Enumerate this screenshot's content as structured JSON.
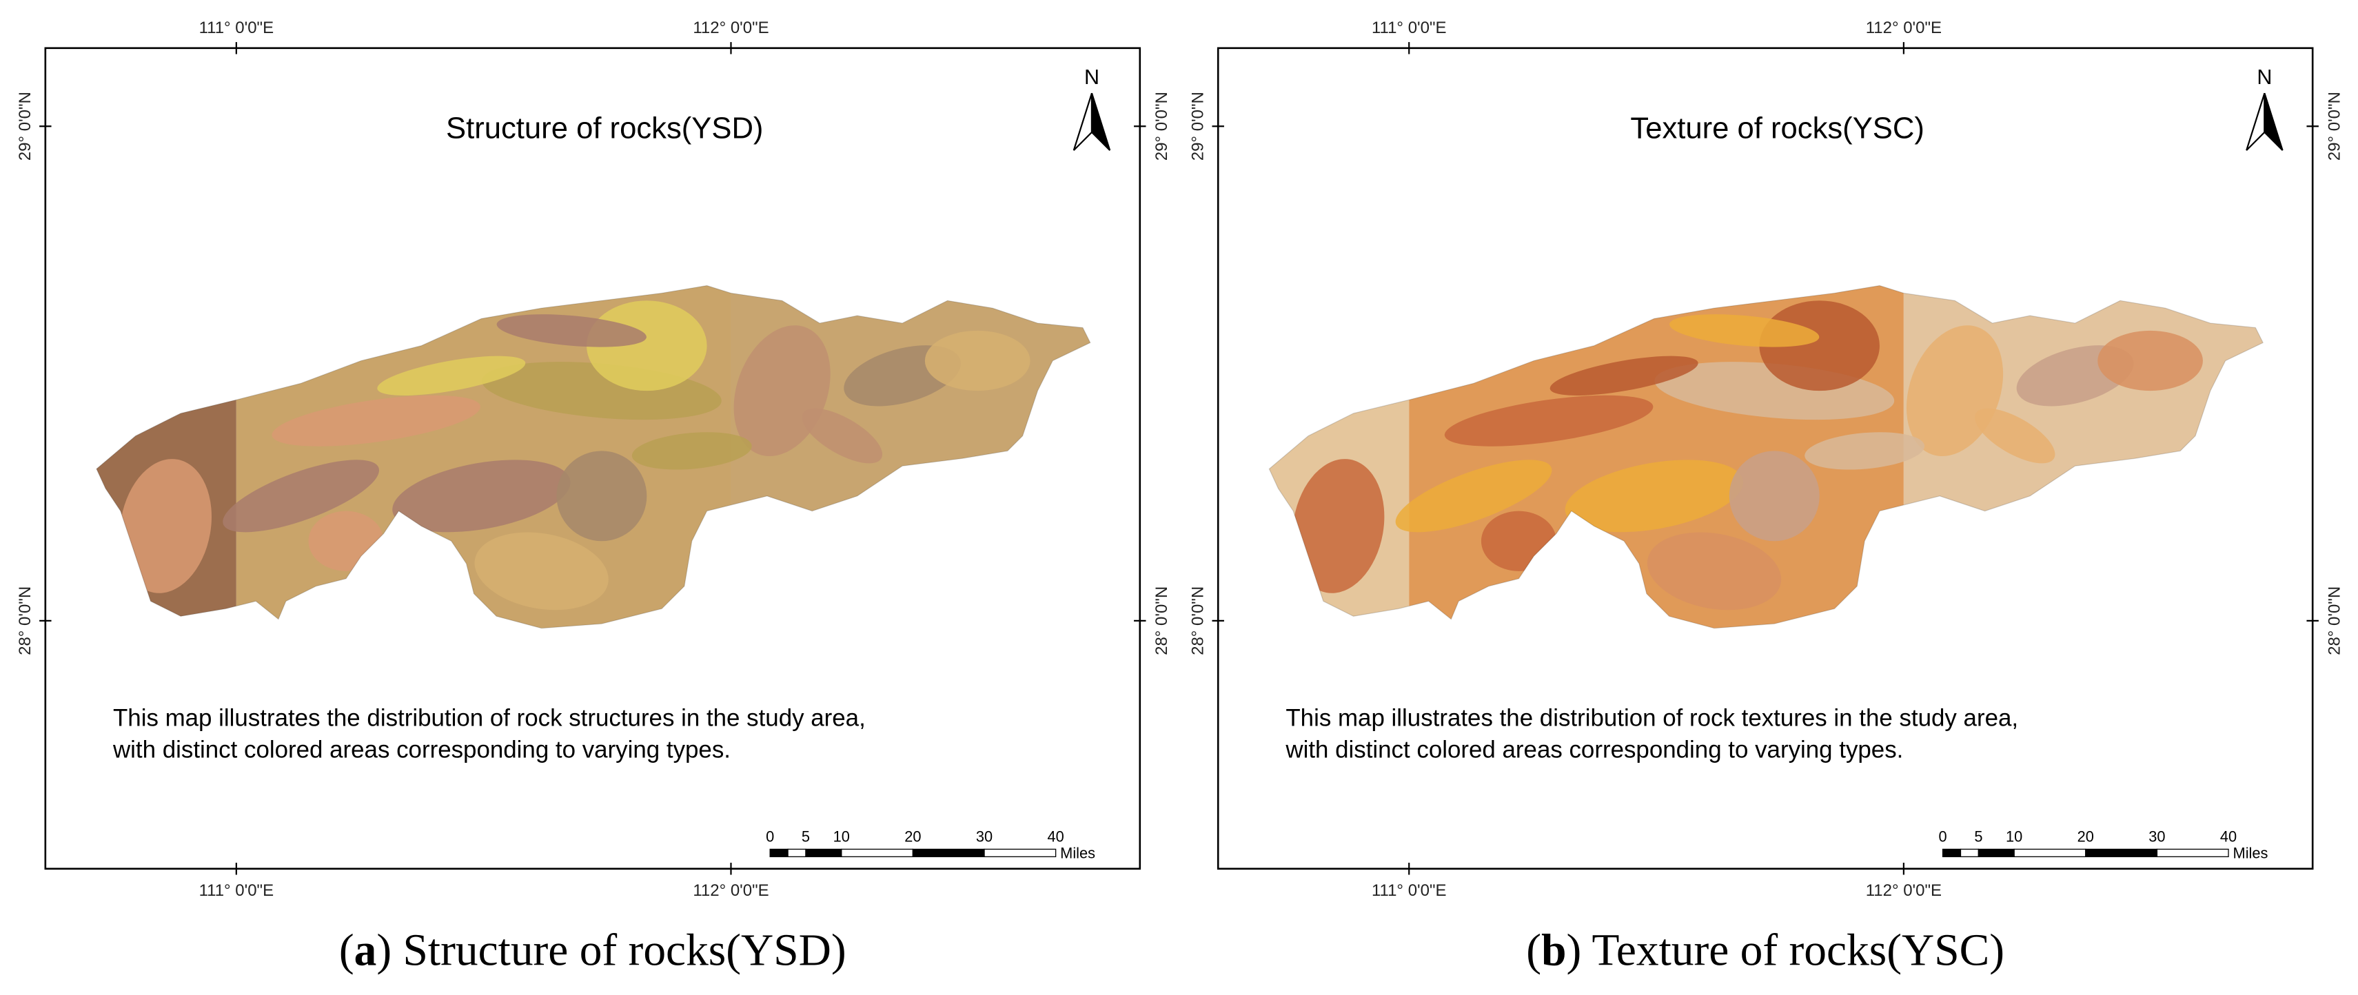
{
  "panels": [
    {
      "title": "Structure of rocks(YSD)",
      "lon_labels": [
        "111° 0'0\"E",
        "112° 0'0\"E"
      ],
      "lat_labels": [
        "29° 0'0\"N",
        "28° 0'0\"N"
      ],
      "north": "N",
      "description": [
        "This map illustrates the distribution of rock structures in the study area,",
        "with distinct colored areas corresponding to varying types."
      ],
      "scale": {
        "ticks": [
          0,
          5,
          10,
          20,
          30,
          40
        ],
        "unit": "Miles"
      },
      "caption": [
        "(",
        "a",
        ") Structure of rocks(YSD)"
      ]
    },
    {
      "title": "Texture of rocks(YSC)",
      "lon_labels": [
        "111° 0'0\"E",
        "112° 0'0\"E"
      ],
      "lat_labels": [
        "29° 0'0\"N",
        "28° 0'0\"N"
      ],
      "north": "N",
      "description": [
        "This map illustrates the distribution of rock textures in the study area,",
        "with distinct colored areas corresponding to varying types."
      ],
      "scale": {
        "ticks": [
          0,
          5,
          10,
          20,
          30,
          40
        ],
        "unit": "Miles"
      },
      "caption": [
        "(",
        "b",
        ") Texture of rocks(YSC)"
      ]
    }
  ]
}
